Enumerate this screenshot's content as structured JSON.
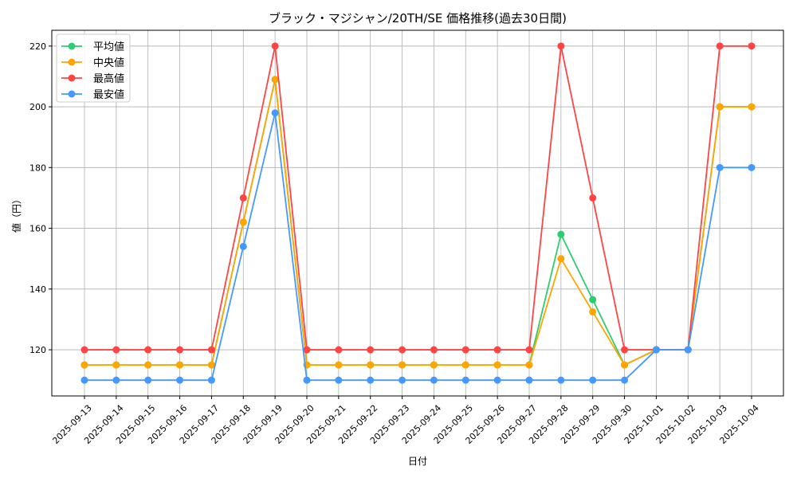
{
  "chart_data": {
    "type": "line",
    "title": "ブラック・マジシャン/20TH/SE 価格推移(過去30日間)",
    "xlabel": "日付",
    "ylabel": "値（円）",
    "ylim": [
      104.8,
      225.2
    ],
    "yticks": [
      120,
      140,
      160,
      180,
      200,
      220
    ],
    "grid": true,
    "legend_position": "top-left",
    "categories": [
      "2025-09-13",
      "2025-09-14",
      "2025-09-15",
      "2025-09-16",
      "2025-09-17",
      "2025-09-18",
      "2025-09-19",
      "2025-09-20",
      "2025-09-21",
      "2025-09-22",
      "2025-09-23",
      "2025-09-24",
      "2025-09-25",
      "2025-09-26",
      "2025-09-27",
      "2025-09-28",
      "2025-09-29",
      "2025-09-30",
      "2025-10-01",
      "2025-10-02",
      "2025-10-03",
      "2025-10-04"
    ],
    "series": [
      {
        "name": "平均値",
        "color": "#2ecc71",
        "values": [
          115,
          115,
          115,
          115,
          115,
          162,
          209,
          115,
          115,
          115,
          115,
          115,
          115,
          115,
          115,
          158,
          136.5,
          115,
          120,
          120,
          200,
          200
        ]
      },
      {
        "name": "中央値",
        "color": "#ffa500",
        "values": [
          115,
          115,
          115,
          115,
          115,
          162,
          209,
          115,
          115,
          115,
          115,
          115,
          115,
          115,
          115,
          150,
          132.5,
          115,
          120,
          120,
          200,
          200
        ]
      },
      {
        "name": "最高値",
        "color": "#ff4444",
        "values": [
          120,
          120,
          120,
          120,
          120,
          170,
          220,
          120,
          120,
          120,
          120,
          120,
          120,
          120,
          120,
          220,
          170,
          120,
          120,
          120,
          220,
          220
        ]
      },
      {
        "name": "最安値",
        "color": "#4499ff",
        "values": [
          110,
          110,
          110,
          110,
          110,
          154,
          198,
          110,
          110,
          110,
          110,
          110,
          110,
          110,
          110,
          110,
          110,
          110,
          120,
          120,
          180,
          180
        ]
      }
    ]
  }
}
